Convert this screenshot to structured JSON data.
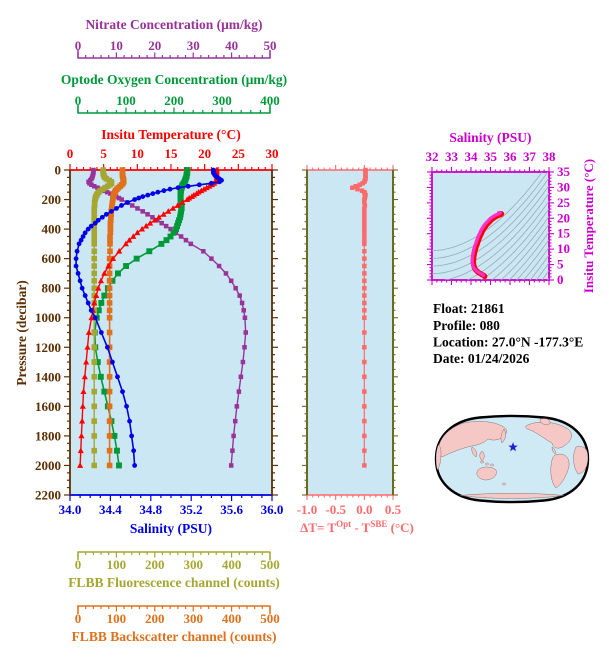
{
  "figure": {
    "float_info": {
      "lines": [
        "Float:  21861",
        "Profile:  080",
        "Location:  27.0°N  -177.3°E",
        "Date:  01/24/2026"
      ]
    }
  },
  "colors": {
    "nitrate": "#993399",
    "oxygen": "#009939",
    "temperature": "#ff0000",
    "pressure": "#5c2e00",
    "salinity": "#0000e6",
    "fluorescence": "#a6a632",
    "backscatter": "#e0711c",
    "delta_t": "#ff6b6b",
    "delta_border": "#6b6b20",
    "ts": "#cc00cc",
    "ts_curve": "#ff30c8",
    "ts_curve_edge": "#ff0000",
    "plot_bg": "#cbe7f3",
    "contour": "#98acb4",
    "map_ocean": "#cfe9f5",
    "map_land": "#f5c8c6",
    "map_outline": "#000000",
    "star": "#2020cc",
    "info_text": "#000000"
  },
  "axes": {
    "nitrate": {
      "title": "Nitrate Concentration (μm/kg)",
      "min": 0,
      "max": 50,
      "major_labels": [
        "0",
        "10",
        "20",
        "30",
        "40",
        "50"
      ],
      "minor_step": 2
    },
    "oxygen": {
      "title": "Optode Oxygen Concentration (μm/kg)",
      "min": 0,
      "max": 400,
      "major_labels": [
        "0",
        "100",
        "200",
        "300",
        "400"
      ],
      "minor_step": 20
    },
    "temperature": {
      "title": "Insitu Temperature (°C)",
      "min": 0,
      "max": 30,
      "major_labels": [
        "0",
        "5",
        "10",
        "15",
        "20",
        "25",
        "30"
      ],
      "minor_step": 1
    },
    "pressure": {
      "title": "Pressure (decibar)",
      "min": 0,
      "max": 2200,
      "major_labels": [
        "0",
        "200",
        "400",
        "600",
        "800",
        "1000",
        "1200",
        "1400",
        "1600",
        "1800",
        "2000",
        "2200"
      ],
      "minor_step": 50
    },
    "salinity": {
      "title": "Salinity (PSU)",
      "min": 34.0,
      "max": 36.0,
      "major_labels": [
        "34.0",
        "34.4",
        "34.8",
        "35.2",
        "35.6",
        "36.0"
      ],
      "minor_step": 0.1
    },
    "fluorescence": {
      "title": "FLBB Fluorescence channel (counts)",
      "min": 0,
      "max": 500,
      "major_labels": [
        "0",
        "100",
        "200",
        "300",
        "400",
        "500"
      ],
      "minor_step": 20
    },
    "backscatter": {
      "title": "FLBB Backscatter channel (counts)",
      "min": 0,
      "max": 500,
      "major_labels": [
        "0",
        "100",
        "200",
        "300",
        "400",
        "500"
      ],
      "minor_step": 20
    },
    "delta_t": {
      "title_parts": {
        "pre": "ΔT= T",
        "sup1": "Opt",
        "mid": " - T",
        "sup2": "SBE",
        "post": " (°C)"
      },
      "min": -1.0,
      "max": 0.5,
      "major_labels": [
        "-1.0",
        "-0.5",
        "0.0",
        "0.5"
      ],
      "minor_step": 0.1
    },
    "ts_salinity": {
      "title": "Salinity (PSU)",
      "min": 32,
      "max": 38,
      "major_labels": [
        "32",
        "33",
        "34",
        "35",
        "36",
        "37",
        "38"
      ],
      "minor_step": 0.25
    },
    "ts_temperature": {
      "title": "Insitu Temperature (°C)",
      "min": 0,
      "max": 35,
      "major_labels": [
        "0",
        "5",
        "10",
        "15",
        "20",
        "25",
        "30",
        "35"
      ],
      "minor_step": 1
    }
  },
  "chart_data": [
    {
      "id": "profile",
      "type": "line",
      "title": "Float profile vs pressure",
      "ylabel": "Pressure (decibar)",
      "ylim": [
        0,
        2200
      ],
      "pressure": [
        0,
        10,
        20,
        30,
        40,
        50,
        60,
        70,
        80,
        90,
        100,
        110,
        120,
        130,
        140,
        150,
        160,
        170,
        180,
        190,
        200,
        220,
        240,
        260,
        280,
        300,
        320,
        340,
        360,
        380,
        400,
        425,
        450,
        475,
        500,
        550,
        600,
        650,
        700,
        750,
        800,
        850,
        900,
        950,
        1000,
        1100,
        1200,
        1300,
        1400,
        1500,
        1600,
        1700,
        1800,
        1900,
        2000
      ],
      "series": [
        {
          "name": "Nitrate Concentration",
          "axis": "nitrate",
          "marker": "square",
          "msize": 2.6,
          "lw": 1.4,
          "values": [
            5.8,
            5.8,
            5.8,
            5.7,
            5.6,
            5.5,
            5.3,
            5.0,
            4.6,
            4.8,
            5.3,
            6.0,
            6.8,
            7.6,
            8.4,
            9.2,
            10.0,
            10.7,
            11.4,
            12.1,
            12.8,
            14.1,
            15.4,
            16.7,
            18.0,
            19.2,
            20.4,
            21.6,
            22.7,
            23.8,
            24.9,
            26.2,
            27.5,
            28.7,
            29.9,
            33.0,
            35.0,
            36.9,
            38.6,
            39.9,
            41.0,
            42.0,
            42.6,
            43.0,
            43.3,
            43.5,
            43.2,
            42.8,
            42.3,
            41.8,
            41.3,
            40.9,
            40.5,
            40.2,
            39.9
          ]
        },
        {
          "name": "Optode Oxygen Concentration",
          "axis": "oxygen",
          "marker": "square",
          "msize": 3.4,
          "lw": 1.6,
          "values": [
            232,
            232,
            232,
            231,
            231,
            230,
            229,
            228,
            227,
            225,
            223,
            222,
            221,
            220,
            220,
            219,
            219,
            219,
            219,
            219,
            219,
            220,
            221,
            221,
            220,
            219,
            218,
            216,
            214,
            212,
            210,
            205,
            199,
            191,
            181,
            157,
            132,
            111,
            95,
            84,
            75,
            68,
            62,
            57,
            53,
            49,
            50,
            55,
            61,
            68,
            75,
            82,
            88,
            93,
            97
          ]
        },
        {
          "name": "FLBB Fluorescence",
          "axis": "fluorescence",
          "marker": "square",
          "msize": 3.2,
          "lw": 1.4,
          "values": [
            82,
            82,
            82,
            83,
            84,
            86,
            90,
            97,
            102,
            103,
            99,
            93,
            87,
            81,
            75,
            71,
            68,
            66,
            64,
            63,
            62,
            61,
            61,
            60,
            60,
            60,
            60,
            60,
            60,
            60,
            60,
            60,
            60,
            60,
            60,
            60,
            60,
            60,
            60,
            60,
            60,
            60,
            60,
            60,
            60,
            60,
            60,
            60,
            60,
            60,
            60,
            60,
            60,
            60,
            60
          ]
        },
        {
          "name": "FLBB Backscatter",
          "axis": "backscatter",
          "marker": "square",
          "msize": 3.2,
          "lw": 1.6,
          "values": [
            130,
            130,
            130,
            130,
            130,
            131,
            132,
            133,
            133,
            131,
            128,
            124,
            120,
            116,
            113,
            111,
            109,
            108,
            107,
            106,
            106,
            105,
            104,
            103,
            102,
            102,
            101,
            101,
            100,
            100,
            100,
            100,
            99,
            99,
            99,
            99,
            98,
            98,
            98,
            98,
            98,
            98,
            98,
            98,
            98,
            98,
            98,
            98,
            98,
            98,
            98,
            98,
            98,
            98,
            98
          ]
        },
        {
          "name": "Insitu Temperature",
          "axis": "temperature",
          "marker": "triangle",
          "msize": 3.2,
          "lw": 1.4,
          "values": [
            21.8,
            21.8,
            21.8,
            21.8,
            21.8,
            21.8,
            21.8,
            21.75,
            21.6,
            21.4,
            21.1,
            20.7,
            20.3,
            19.9,
            19.5,
            19.1,
            18.8,
            18.4,
            18.1,
            17.7,
            17.4,
            16.7,
            16.0,
            15.3,
            14.6,
            13.9,
            13.2,
            12.6,
            11.9,
            11.3,
            10.7,
            10.0,
            9.4,
            8.8,
            8.3,
            7.3,
            6.4,
            5.7,
            5.1,
            4.6,
            4.2,
            3.9,
            3.6,
            3.4,
            3.2,
            2.8,
            2.6,
            2.4,
            2.2,
            2.0,
            1.9,
            1.8,
            1.7,
            1.6,
            1.5
          ]
        },
        {
          "name": "Salinity",
          "axis": "salinity",
          "marker": "circle",
          "msize": 2.4,
          "lw": 1.6,
          "values": [
            35.42,
            35.42,
            35.42,
            35.43,
            35.44,
            35.46,
            35.48,
            35.5,
            35.48,
            35.4,
            35.28,
            35.17,
            35.07,
            34.99,
            34.93,
            34.87,
            34.82,
            34.77,
            34.72,
            34.68,
            34.64,
            34.57,
            34.51,
            34.46,
            34.41,
            34.36,
            34.32,
            34.28,
            34.25,
            34.21,
            34.18,
            34.15,
            34.13,
            34.11,
            34.09,
            34.07,
            34.06,
            34.06,
            34.08,
            34.1,
            34.12,
            34.15,
            34.18,
            34.21,
            34.25,
            34.31,
            34.37,
            34.42,
            34.47,
            34.52,
            34.56,
            34.59,
            34.61,
            34.63,
            34.64
          ]
        }
      ]
    },
    {
      "id": "delta",
      "type": "line",
      "title": "Temperature difference Optode minus SBE",
      "xlim": [
        -1.0,
        0.5
      ],
      "pressure_ref": "profile",
      "series": [
        {
          "name": "ΔT",
          "axis": "delta_t",
          "marker": "square",
          "msize": 2.6,
          "lw": 1.2,
          "values": [
            0.02,
            0.02,
            0.02,
            0.02,
            0.02,
            0.02,
            0.02,
            0.01,
            0.0,
            -0.03,
            -0.08,
            -0.15,
            -0.21,
            -0.12,
            -0.04,
            0.0,
            0.01,
            0.02,
            0.01,
            0.01,
            0.0,
            0.0,
            0.01,
            0.0,
            0.0,
            0.0,
            0.0,
            0.0,
            0.0,
            0.0,
            0.0,
            0.0,
            0.0,
            0.0,
            0.0,
            0.0,
            0.0,
            0.0,
            0.0,
            0.0,
            0.0,
            0.0,
            0.0,
            0.0,
            0.0,
            0.0,
            0.0,
            0.0,
            0.0,
            0.0,
            0.0,
            0.0,
            0.0,
            0.0,
            0.0
          ]
        }
      ]
    },
    {
      "id": "ts",
      "type": "line",
      "title": "T-S diagram",
      "x_axis": "ts_salinity",
      "y_axis": "ts_temperature",
      "curve": {
        "salinity_series": "Salinity",
        "temperature_series": "Insitu Temperature"
      }
    },
    {
      "id": "map",
      "type": "map",
      "star": {
        "lat": 27.0,
        "lon": -177.3
      }
    }
  ]
}
